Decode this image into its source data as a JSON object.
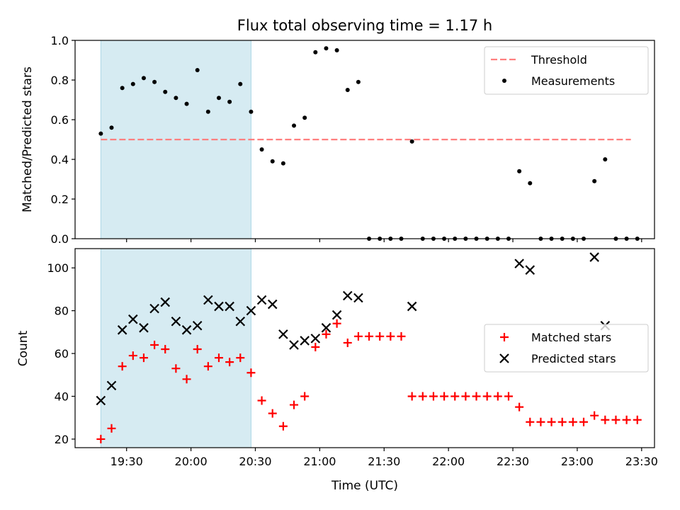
{
  "figure": {
    "title": "Flux total observing time = 1.17 h",
    "xlabel": "Time (UTC)"
  },
  "chart_data": [
    {
      "type": "scatter",
      "ylabel": "Matched/Predicted stars",
      "ylim": [
        0,
        1.0
      ],
      "yticks": [
        0.0,
        0.2,
        0.4,
        0.6,
        0.8,
        1.0
      ],
      "xlim": [
        "19:06",
        "23:36"
      ],
      "xticks": [
        "19:30",
        "20:00",
        "20:30",
        "21:00",
        "21:30",
        "22:00",
        "22:30",
        "23:00",
        "23:30"
      ],
      "shaded_span": {
        "start": "19:18",
        "end": "20:28",
        "color": "#add8e6"
      },
      "threshold": {
        "name": "Threshold",
        "value": 0.5,
        "start": "19:18",
        "end": "23:25",
        "color": "#ff7f7f"
      },
      "legend": {
        "location": "upper right",
        "entries": [
          "Threshold",
          "Measurements"
        ]
      },
      "series": [
        {
          "name": "Measurements",
          "marker": "dot",
          "color": "#000000",
          "points": [
            [
              "19:18",
              0.53
            ],
            [
              "19:23",
              0.56
            ],
            [
              "19:28",
              0.76
            ],
            [
              "19:33",
              0.78
            ],
            [
              "19:38",
              0.81
            ],
            [
              "19:43",
              0.79
            ],
            [
              "19:48",
              0.74
            ],
            [
              "19:53",
              0.71
            ],
            [
              "19:58",
              0.68
            ],
            [
              "20:03",
              0.85
            ],
            [
              "20:08",
              0.64
            ],
            [
              "20:13",
              0.71
            ],
            [
              "20:18",
              0.69
            ],
            [
              "20:23",
              0.78
            ],
            [
              "20:28",
              0.64
            ],
            [
              "20:33",
              0.45
            ],
            [
              "20:38",
              0.39
            ],
            [
              "20:43",
              0.38
            ],
            [
              "20:48",
              0.57
            ],
            [
              "20:53",
              0.61
            ],
            [
              "20:58",
              0.94
            ],
            [
              "21:03",
              0.96
            ],
            [
              "21:08",
              0.95
            ],
            [
              "21:13",
              0.75
            ],
            [
              "21:18",
              0.79
            ],
            [
              "21:23",
              0.0
            ],
            [
              "21:28",
              0.0
            ],
            [
              "21:33",
              0.0
            ],
            [
              "21:38",
              0.0
            ],
            [
              "21:43",
              0.49
            ],
            [
              "21:48",
              0.0
            ],
            [
              "21:53",
              0.0
            ],
            [
              "21:58",
              0.0
            ],
            [
              "22:03",
              0.0
            ],
            [
              "22:08",
              0.0
            ],
            [
              "22:13",
              0.0
            ],
            [
              "22:18",
              0.0
            ],
            [
              "22:23",
              0.0
            ],
            [
              "22:28",
              0.0
            ],
            [
              "22:33",
              0.34
            ],
            [
              "22:38",
              0.28
            ],
            [
              "22:43",
              0.0
            ],
            [
              "22:48",
              0.0
            ],
            [
              "22:53",
              0.0
            ],
            [
              "22:58",
              0.0
            ],
            [
              "23:03",
              0.0
            ],
            [
              "23:08",
              0.29
            ],
            [
              "23:13",
              0.4
            ],
            [
              "23:18",
              0.0
            ],
            [
              "23:23",
              0.0
            ],
            [
              "23:28",
              0.0
            ]
          ]
        }
      ]
    },
    {
      "type": "scatter",
      "ylabel": "Count",
      "ylim": [
        16,
        109
      ],
      "yticks": [
        20,
        40,
        60,
        80,
        100
      ],
      "xlim": [
        "19:06",
        "23:36"
      ],
      "xticks": [
        "19:30",
        "20:00",
        "20:30",
        "21:00",
        "21:30",
        "22:00",
        "22:30",
        "23:00",
        "23:30"
      ],
      "shaded_span": {
        "start": "19:18",
        "end": "20:28",
        "color": "#add8e6"
      },
      "legend": {
        "location": "center right",
        "entries": [
          "Matched stars",
          "Predicted stars"
        ]
      },
      "series": [
        {
          "name": "Matched stars",
          "marker": "plus",
          "color": "#ff0000",
          "points": [
            [
              "19:18",
              20
            ],
            [
              "19:23",
              25
            ],
            [
              "19:28",
              54
            ],
            [
              "19:33",
              59
            ],
            [
              "19:38",
              58
            ],
            [
              "19:43",
              64
            ],
            [
              "19:48",
              62
            ],
            [
              "19:53",
              53
            ],
            [
              "19:58",
              48
            ],
            [
              "20:03",
              62
            ],
            [
              "20:08",
              54
            ],
            [
              "20:13",
              58
            ],
            [
              "20:18",
              56
            ],
            [
              "20:23",
              58
            ],
            [
              "20:28",
              51
            ],
            [
              "20:33",
              38
            ],
            [
              "20:38",
              32
            ],
            [
              "20:43",
              26
            ],
            [
              "20:48",
              36
            ],
            [
              "20:53",
              40
            ],
            [
              "20:58",
              63
            ],
            [
              "21:03",
              69
            ],
            [
              "21:08",
              74
            ],
            [
              "21:13",
              65
            ],
            [
              "21:18",
              68
            ],
            [
              "21:23",
              68
            ],
            [
              "21:28",
              68
            ],
            [
              "21:33",
              68
            ],
            [
              "21:38",
              68
            ],
            [
              "21:43",
              40
            ],
            [
              "21:48",
              40
            ],
            [
              "21:53",
              40
            ],
            [
              "21:58",
              40
            ],
            [
              "22:03",
              40
            ],
            [
              "22:08",
              40
            ],
            [
              "22:13",
              40
            ],
            [
              "22:18",
              40
            ],
            [
              "22:23",
              40
            ],
            [
              "22:28",
              40
            ],
            [
              "22:33",
              35
            ],
            [
              "22:38",
              28
            ],
            [
              "22:43",
              28
            ],
            [
              "22:48",
              28
            ],
            [
              "22:53",
              28
            ],
            [
              "22:58",
              28
            ],
            [
              "23:03",
              28
            ],
            [
              "23:08",
              31
            ],
            [
              "23:13",
              29
            ],
            [
              "23:18",
              29
            ],
            [
              "23:23",
              29
            ],
            [
              "23:28",
              29
            ]
          ]
        },
        {
          "name": "Predicted stars",
          "marker": "x",
          "color": "#000000",
          "points": [
            [
              "19:18",
              38
            ],
            [
              "19:23",
              45
            ],
            [
              "19:28",
              71
            ],
            [
              "19:33",
              76
            ],
            [
              "19:38",
              72
            ],
            [
              "19:43",
              81
            ],
            [
              "19:48",
              84
            ],
            [
              "19:53",
              75
            ],
            [
              "19:58",
              71
            ],
            [
              "20:03",
              73
            ],
            [
              "20:08",
              85
            ],
            [
              "20:13",
              82
            ],
            [
              "20:18",
              82
            ],
            [
              "20:23",
              75
            ],
            [
              "20:28",
              80
            ],
            [
              "20:33",
              85
            ],
            [
              "20:38",
              83
            ],
            [
              "20:43",
              69
            ],
            [
              "20:48",
              64
            ],
            [
              "20:53",
              66
            ],
            [
              "20:58",
              67
            ],
            [
              "21:03",
              72
            ],
            [
              "21:08",
              78
            ],
            [
              "21:13",
              87
            ],
            [
              "21:18",
              86
            ],
            [
              "21:43",
              82
            ],
            [
              "22:33",
              102
            ],
            [
              "22:38",
              99
            ],
            [
              "23:08",
              105
            ],
            [
              "23:13",
              73
            ]
          ]
        }
      ]
    }
  ]
}
